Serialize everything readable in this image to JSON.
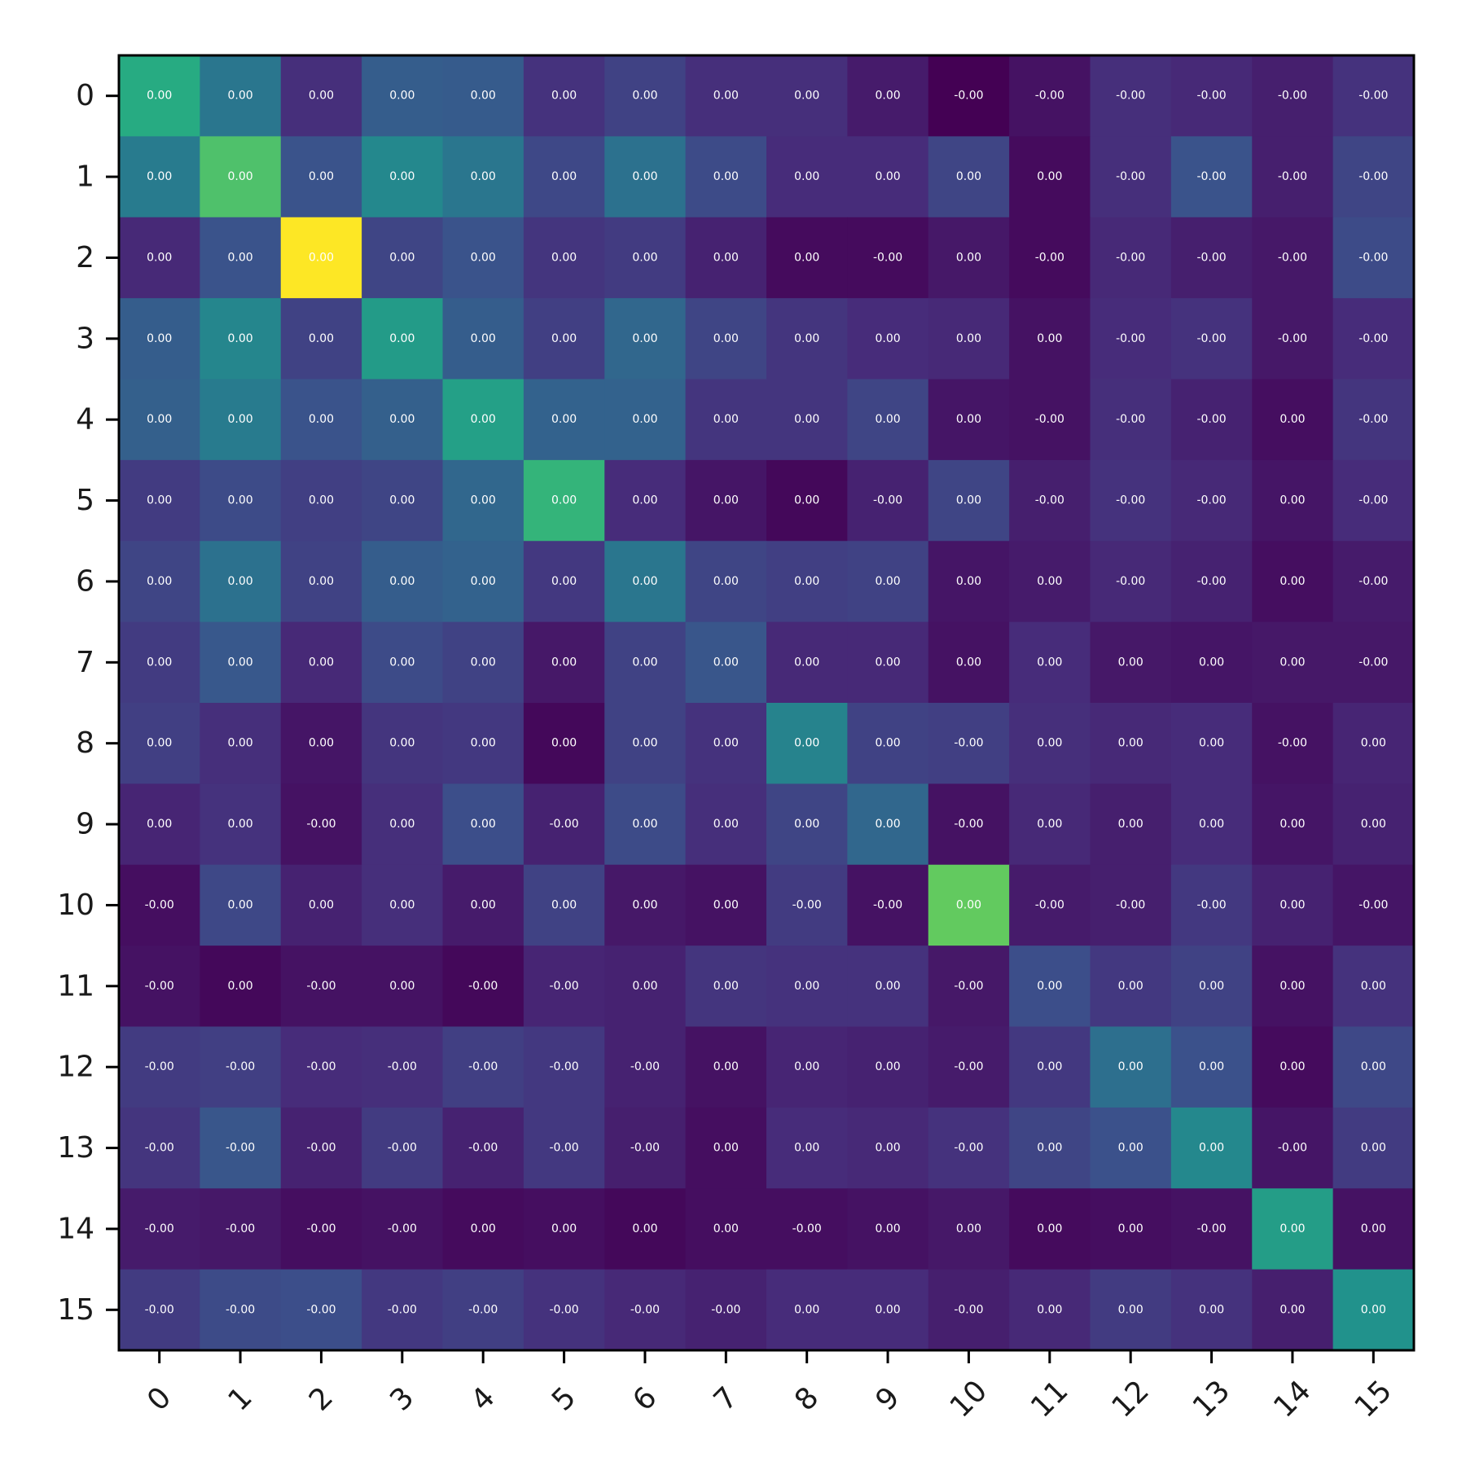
{
  "chart_data": {
    "type": "heatmap",
    "title": "",
    "xlabel": "",
    "ylabel": "",
    "x_ticks": [
      "0",
      "1",
      "2",
      "3",
      "4",
      "5",
      "6",
      "7",
      "8",
      "9",
      "10",
      "11",
      "12",
      "13",
      "14",
      "15"
    ],
    "y_ticks": [
      "0",
      "1",
      "2",
      "3",
      "4",
      "5",
      "6",
      "7",
      "8",
      "9",
      "10",
      "11",
      "12",
      "13",
      "14",
      "15"
    ],
    "colormap": "viridis",
    "intensity": [
      [
        0.62,
        0.4,
        0.14,
        0.3,
        0.29,
        0.15,
        0.2,
        0.14,
        0.14,
        0.08,
        0.0,
        0.05,
        0.14,
        0.12,
        0.09,
        0.15
      ],
      [
        0.42,
        0.72,
        0.26,
        0.47,
        0.4,
        0.22,
        0.38,
        0.23,
        0.13,
        0.13,
        0.21,
        0.03,
        0.14,
        0.26,
        0.09,
        0.21
      ],
      [
        0.12,
        0.26,
        1.0,
        0.21,
        0.26,
        0.16,
        0.18,
        0.1,
        0.03,
        0.03,
        0.07,
        0.03,
        0.12,
        0.09,
        0.07,
        0.23
      ],
      [
        0.3,
        0.46,
        0.2,
        0.55,
        0.3,
        0.19,
        0.34,
        0.21,
        0.16,
        0.13,
        0.12,
        0.05,
        0.13,
        0.15,
        0.07,
        0.13
      ],
      [
        0.31,
        0.42,
        0.26,
        0.31,
        0.57,
        0.32,
        0.32,
        0.16,
        0.16,
        0.21,
        0.06,
        0.05,
        0.14,
        0.1,
        0.04,
        0.16
      ],
      [
        0.18,
        0.23,
        0.19,
        0.21,
        0.34,
        0.66,
        0.13,
        0.06,
        0.02,
        0.1,
        0.21,
        0.09,
        0.15,
        0.12,
        0.06,
        0.13
      ],
      [
        0.21,
        0.38,
        0.2,
        0.3,
        0.32,
        0.17,
        0.4,
        0.21,
        0.19,
        0.2,
        0.06,
        0.08,
        0.12,
        0.1,
        0.04,
        0.08
      ],
      [
        0.18,
        0.28,
        0.12,
        0.23,
        0.2,
        0.07,
        0.2,
        0.27,
        0.12,
        0.12,
        0.05,
        0.13,
        0.07,
        0.06,
        0.07,
        0.07
      ],
      [
        0.19,
        0.14,
        0.06,
        0.16,
        0.17,
        0.02,
        0.2,
        0.15,
        0.45,
        0.2,
        0.19,
        0.14,
        0.12,
        0.13,
        0.05,
        0.11
      ],
      [
        0.11,
        0.15,
        0.05,
        0.14,
        0.24,
        0.1,
        0.23,
        0.14,
        0.21,
        0.34,
        0.05,
        0.12,
        0.09,
        0.13,
        0.06,
        0.1
      ],
      [
        0.04,
        0.22,
        0.1,
        0.14,
        0.08,
        0.2,
        0.07,
        0.05,
        0.18,
        0.05,
        0.76,
        0.08,
        0.09,
        0.17,
        0.1,
        0.06
      ],
      [
        0.05,
        0.02,
        0.05,
        0.05,
        0.02,
        0.11,
        0.1,
        0.16,
        0.15,
        0.15,
        0.07,
        0.24,
        0.17,
        0.2,
        0.05,
        0.15
      ],
      [
        0.18,
        0.19,
        0.13,
        0.14,
        0.19,
        0.17,
        0.1,
        0.05,
        0.11,
        0.1,
        0.08,
        0.17,
        0.37,
        0.25,
        0.03,
        0.22
      ],
      [
        0.16,
        0.27,
        0.1,
        0.18,
        0.1,
        0.17,
        0.09,
        0.04,
        0.13,
        0.12,
        0.15,
        0.21,
        0.25,
        0.47,
        0.06,
        0.18
      ],
      [
        0.08,
        0.07,
        0.04,
        0.05,
        0.03,
        0.04,
        0.02,
        0.04,
        0.04,
        0.05,
        0.07,
        0.03,
        0.04,
        0.05,
        0.56,
        0.05
      ],
      [
        0.18,
        0.23,
        0.24,
        0.17,
        0.19,
        0.15,
        0.12,
        0.1,
        0.13,
        0.13,
        0.09,
        0.12,
        0.18,
        0.15,
        0.09,
        0.51
      ]
    ],
    "labels": [
      [
        "0.00",
        "0.00",
        "0.00",
        "0.00",
        "0.00",
        "0.00",
        "0.00",
        "0.00",
        "0.00",
        "0.00",
        "-0.00",
        "-0.00",
        "-0.00",
        "-0.00",
        "-0.00",
        "-0.00"
      ],
      [
        "0.00",
        "0.00",
        "0.00",
        "0.00",
        "0.00",
        "0.00",
        "0.00",
        "0.00",
        "0.00",
        "0.00",
        "0.00",
        "0.00",
        "-0.00",
        "-0.00",
        "-0.00",
        "-0.00"
      ],
      [
        "0.00",
        "0.00",
        "0.00",
        "0.00",
        "0.00",
        "0.00",
        "0.00",
        "0.00",
        "0.00",
        "-0.00",
        "0.00",
        "-0.00",
        "-0.00",
        "-0.00",
        "-0.00",
        "-0.00"
      ],
      [
        "0.00",
        "0.00",
        "0.00",
        "0.00",
        "0.00",
        "0.00",
        "0.00",
        "0.00",
        "0.00",
        "0.00",
        "0.00",
        "0.00",
        "-0.00",
        "-0.00",
        "-0.00",
        "-0.00"
      ],
      [
        "0.00",
        "0.00",
        "0.00",
        "0.00",
        "0.00",
        "0.00",
        "0.00",
        "0.00",
        "0.00",
        "0.00",
        "0.00",
        "-0.00",
        "-0.00",
        "-0.00",
        "0.00",
        "-0.00"
      ],
      [
        "0.00",
        "0.00",
        "0.00",
        "0.00",
        "0.00",
        "0.00",
        "0.00",
        "0.00",
        "0.00",
        "-0.00",
        "0.00",
        "-0.00",
        "-0.00",
        "-0.00",
        "0.00",
        "-0.00"
      ],
      [
        "0.00",
        "0.00",
        "0.00",
        "0.00",
        "0.00",
        "0.00",
        "0.00",
        "0.00",
        "0.00",
        "0.00",
        "0.00",
        "0.00",
        "-0.00",
        "-0.00",
        "0.00",
        "-0.00"
      ],
      [
        "0.00",
        "0.00",
        "0.00",
        "0.00",
        "0.00",
        "0.00",
        "0.00",
        "0.00",
        "0.00",
        "0.00",
        "0.00",
        "0.00",
        "0.00",
        "0.00",
        "0.00",
        "-0.00"
      ],
      [
        "0.00",
        "0.00",
        "0.00",
        "0.00",
        "0.00",
        "0.00",
        "0.00",
        "0.00",
        "0.00",
        "0.00",
        "-0.00",
        "0.00",
        "0.00",
        "0.00",
        "-0.00",
        "0.00"
      ],
      [
        "0.00",
        "0.00",
        "-0.00",
        "0.00",
        "0.00",
        "-0.00",
        "0.00",
        "0.00",
        "0.00",
        "0.00",
        "-0.00",
        "0.00",
        "0.00",
        "0.00",
        "0.00",
        "0.00"
      ],
      [
        "-0.00",
        "0.00",
        "0.00",
        "0.00",
        "0.00",
        "0.00",
        "0.00",
        "0.00",
        "-0.00",
        "-0.00",
        "0.00",
        "-0.00",
        "-0.00",
        "-0.00",
        "0.00",
        "-0.00"
      ],
      [
        "-0.00",
        "0.00",
        "-0.00",
        "0.00",
        "-0.00",
        "-0.00",
        "0.00",
        "0.00",
        "0.00",
        "0.00",
        "-0.00",
        "0.00",
        "0.00",
        "0.00",
        "0.00",
        "0.00"
      ],
      [
        "-0.00",
        "-0.00",
        "-0.00",
        "-0.00",
        "-0.00",
        "-0.00",
        "-0.00",
        "0.00",
        "0.00",
        "0.00",
        "-0.00",
        "0.00",
        "0.00",
        "0.00",
        "0.00",
        "0.00"
      ],
      [
        "-0.00",
        "-0.00",
        "-0.00",
        "-0.00",
        "-0.00",
        "-0.00",
        "-0.00",
        "0.00",
        "0.00",
        "0.00",
        "-0.00",
        "0.00",
        "0.00",
        "0.00",
        "-0.00",
        "0.00"
      ],
      [
        "-0.00",
        "-0.00",
        "-0.00",
        "-0.00",
        "0.00",
        "0.00",
        "0.00",
        "0.00",
        "-0.00",
        "0.00",
        "0.00",
        "0.00",
        "0.00",
        "-0.00",
        "0.00",
        "0.00"
      ],
      [
        "-0.00",
        "-0.00",
        "-0.00",
        "-0.00",
        "-0.00",
        "-0.00",
        "-0.00",
        "-0.00",
        "0.00",
        "0.00",
        "-0.00",
        "0.00",
        "0.00",
        "0.00",
        "0.00",
        "0.00"
      ]
    ],
    "grid": false,
    "legend": "none"
  }
}
